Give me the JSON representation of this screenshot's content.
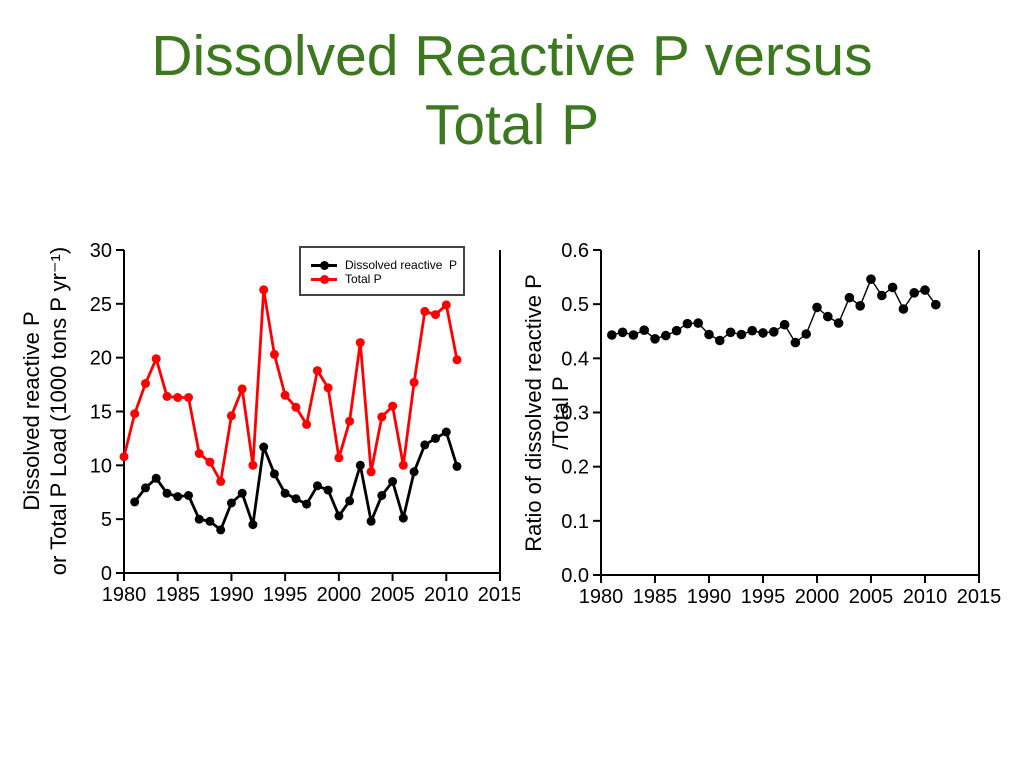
{
  "slide": {
    "title_lines": [
      "Dissolved Reactive P versus",
      "Total P"
    ],
    "title_color": "#3C781E",
    "background_color": "#FFFFFF"
  },
  "chart_data": [
    {
      "type": "line",
      "name": "Dissolved reactive P and Total P load time series",
      "ylabel_lines": [
        "Dissolved reactive P",
        "or Total P Load (1000 tons P yr⁻¹)"
      ],
      "xlabel": "",
      "xlim": [
        1980,
        2015
      ],
      "ylim": [
        0,
        30
      ],
      "x_ticks": [
        1980,
        1985,
        1990,
        1995,
        2000,
        2005,
        2010,
        2015
      ],
      "x_tick_labels": [
        "1980",
        "1985",
        "1990",
        "1995",
        "2000",
        "2005",
        "2010",
        "2015"
      ],
      "y_ticks": [
        0,
        5,
        10,
        15,
        20,
        25,
        30
      ],
      "y_tick_labels": [
        "0",
        "5",
        "10",
        "15",
        "20",
        "25",
        "30"
      ],
      "grid": false,
      "legend_position": "top-right-inside",
      "series": [
        {
          "name": "Dissolved reactive  P",
          "color": "#000000",
          "years": [
            1981,
            1982,
            1983,
            1984,
            1985,
            1986,
            1987,
            1988,
            1989,
            1990,
            1991,
            1992,
            1993,
            1994,
            1995,
            1996,
            1997,
            1998,
            1999,
            2000,
            2001,
            2002,
            2003,
            2004,
            2005,
            2006,
            2007,
            2008,
            2009,
            2010,
            2011
          ],
          "values": [
            6.6,
            7.9,
            8.8,
            7.4,
            7.1,
            7.2,
            5.0,
            4.8,
            4.0,
            6.5,
            7.4,
            4.5,
            11.7,
            9.2,
            7.4,
            6.9,
            6.4,
            8.1,
            7.7,
            5.3,
            6.7,
            10.0,
            4.8,
            7.2,
            8.5,
            5.1,
            9.4,
            11.9,
            12.5,
            13.1,
            9.9
          ]
        },
        {
          "name": "Total P",
          "color": "#FF0000",
          "years": [
            1980,
            1981,
            1982,
            1983,
            1984,
            1985,
            1986,
            1987,
            1988,
            1989,
            1990,
            1991,
            1992,
            1993,
            1994,
            1995,
            1996,
            1997,
            1998,
            1999,
            2000,
            2001,
            2002,
            2003,
            2004,
            2005,
            2006,
            2007,
            2008,
            2009,
            2010,
            2011
          ],
          "values": [
            10.8,
            14.8,
            17.6,
            19.9,
            16.4,
            16.3,
            16.3,
            11.1,
            10.3,
            8.5,
            14.6,
            17.1,
            10.0,
            26.3,
            20.3,
            16.5,
            15.4,
            13.8,
            18.8,
            17.2,
            10.7,
            14.1,
            21.4,
            9.4,
            14.5,
            15.5,
            10.0,
            17.7,
            24.3,
            24.0,
            24.9,
            19.8
          ]
        }
      ]
    },
    {
      "type": "line",
      "name": "Ratio of dissolved reactive P to total P",
      "ylabel_lines": [
        "Ratio of dissolved reactive P",
        "/Total P"
      ],
      "xlabel": "",
      "xlim": [
        1980,
        2015
      ],
      "ylim": [
        0,
        0.6
      ],
      "x_ticks": [
        1980,
        1985,
        1990,
        1995,
        2000,
        2005,
        2010,
        2015
      ],
      "x_tick_labels": [
        "1980",
        "1985",
        "1990",
        "1995",
        "2000",
        "2005",
        "2010",
        "2015"
      ],
      "y_ticks": [
        0,
        0.1,
        0.2,
        0.3,
        0.4,
        0.5,
        0.6
      ],
      "y_tick_labels": [
        "0.0",
        "0.1",
        "0.2",
        "0.3",
        "0.4",
        "0.5",
        "0.6"
      ],
      "grid": false,
      "legend_position": "none",
      "series": [
        {
          "name": "Ratio of dissolved reactive P / Total P",
          "color": "#000000",
          "years": [
            1981,
            1982,
            1983,
            1984,
            1985,
            1986,
            1987,
            1988,
            1989,
            1990,
            1991,
            1992,
            1993,
            1994,
            1995,
            1996,
            1997,
            1998,
            1999,
            2000,
            2001,
            2002,
            2003,
            2004,
            2005,
            2006,
            2007,
            2008,
            2009,
            2010,
            2011
          ],
          "values": [
            0.443,
            0.448,
            0.443,
            0.452,
            0.436,
            0.442,
            0.451,
            0.464,
            0.465,
            0.444,
            0.433,
            0.448,
            0.444,
            0.451,
            0.447,
            0.449,
            0.462,
            0.429,
            0.445,
            0.494,
            0.477,
            0.465,
            0.512,
            0.497,
            0.546,
            0.516,
            0.531,
            0.491,
            0.521,
            0.526,
            0.499
          ]
        }
      ]
    }
  ]
}
